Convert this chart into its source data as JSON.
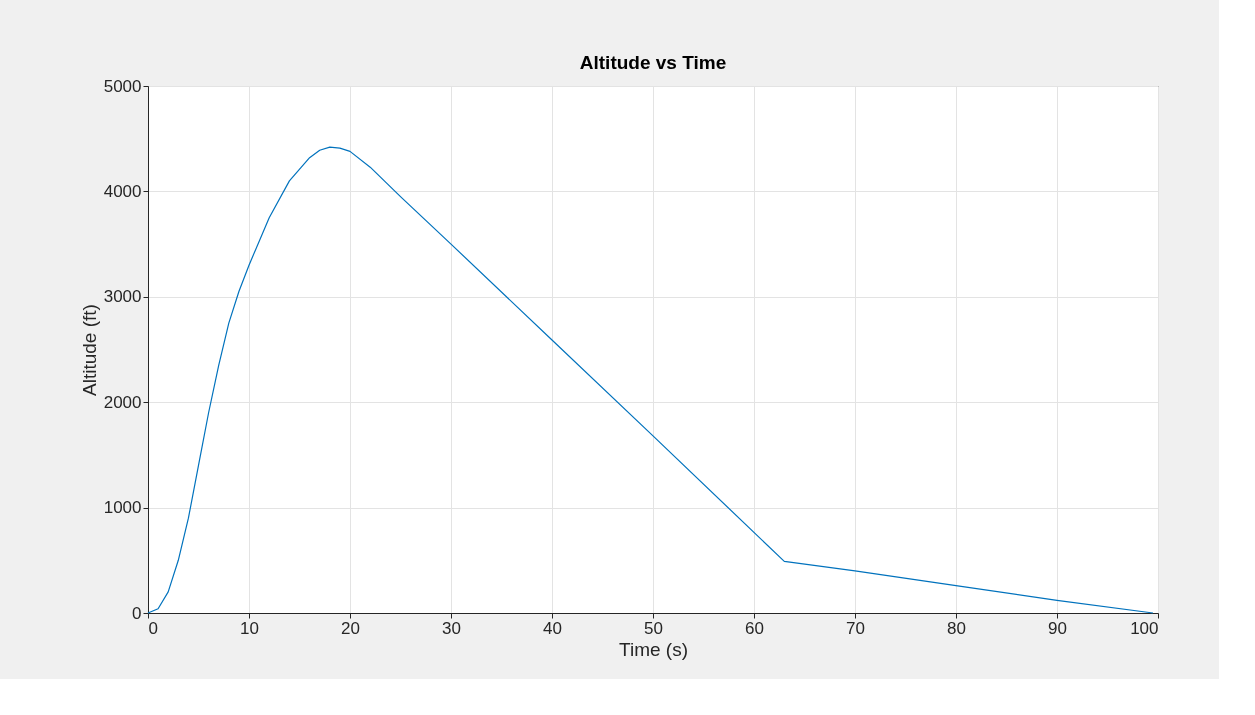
{
  "chart_data": {
    "type": "line",
    "title": "Altitude vs Time",
    "xlabel": "Time (s)",
    "ylabel": "Altitude (ft)",
    "x": [
      0,
      1,
      2,
      3,
      4,
      5,
      6,
      7,
      8,
      9,
      10,
      12,
      14,
      16,
      17,
      18,
      19,
      20,
      22,
      25,
      30,
      40,
      50,
      63,
      70,
      80,
      90,
      99.5
    ],
    "series": [
      {
        "color": "#0072bd",
        "values": [
          0,
          40,
          200,
          500,
          900,
          1400,
          1900,
          2350,
          2750,
          3050,
          3300,
          3750,
          4100,
          4320,
          4390,
          4420,
          4410,
          4380,
          4230,
          3950,
          3500,
          2590,
          1680,
          490,
          400,
          260,
          120,
          0
        ]
      }
    ],
    "xlim": [
      0,
      100
    ],
    "xticks": [
      0,
      10,
      20,
      30,
      40,
      50,
      60,
      70,
      80,
      90,
      100
    ],
    "ylim": [
      0,
      5000
    ],
    "yticks": [
      0,
      1000,
      2000,
      3000,
      4000,
      5000
    ],
    "grid": true,
    "marker": "none",
    "line_style": "solid"
  }
}
